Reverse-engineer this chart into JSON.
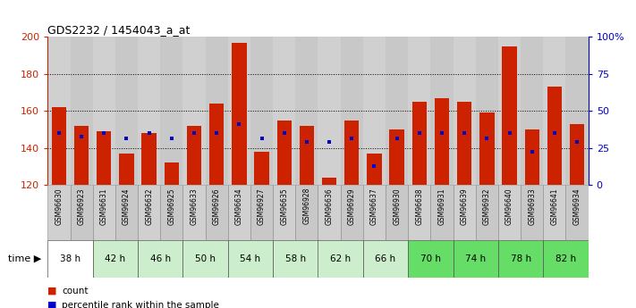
{
  "title": "GDS2232 / 1454043_a_at",
  "samples": [
    "GSM96630",
    "GSM96923",
    "GSM96631",
    "GSM96924",
    "GSM96632",
    "GSM96925",
    "GSM96633",
    "GSM96926",
    "GSM96634",
    "GSM96927",
    "GSM96635",
    "GSM96928",
    "GSM96636",
    "GSM96929",
    "GSM96637",
    "GSM96930",
    "GSM96638",
    "GSM96931",
    "GSM96639",
    "GSM96932",
    "GSM96640",
    "GSM96933",
    "GSM96641",
    "GSM96934"
  ],
  "count_values": [
    162,
    152,
    149,
    137,
    148,
    132,
    152,
    164,
    197,
    138,
    155,
    152,
    124,
    155,
    137,
    150,
    165,
    167,
    165,
    159,
    195,
    150,
    173,
    153
  ],
  "percentile_values": [
    148,
    146,
    148,
    145,
    148,
    145,
    148,
    148,
    153,
    145,
    148,
    143,
    143,
    145,
    130,
    145,
    148,
    148,
    148,
    145,
    148,
    138,
    148,
    143
  ],
  "time_groups": [
    {
      "label": "38 h",
      "start": 0,
      "end": 2
    },
    {
      "label": "42 h",
      "start": 2,
      "end": 4
    },
    {
      "label": "46 h",
      "start": 4,
      "end": 6
    },
    {
      "label": "50 h",
      "start": 6,
      "end": 8
    },
    {
      "label": "54 h",
      "start": 8,
      "end": 10
    },
    {
      "label": "58 h",
      "start": 10,
      "end": 12
    },
    {
      "label": "62 h",
      "start": 12,
      "end": 14
    },
    {
      "label": "66 h",
      "start": 14,
      "end": 16
    },
    {
      "label": "70 h",
      "start": 16,
      "end": 18
    },
    {
      "label": "74 h",
      "start": 18,
      "end": 20
    },
    {
      "label": "78 h",
      "start": 20,
      "end": 22
    },
    {
      "label": "82 h",
      "start": 22,
      "end": 24
    }
  ],
  "time_bg_colors": [
    "#ffffff",
    "#cceecc",
    "#cceecc",
    "#cceecc",
    "#cceecc",
    "#cceecc",
    "#cceecc",
    "#cceecc",
    "#66dd66",
    "#66dd66",
    "#66dd66",
    "#66dd66"
  ],
  "ymin": 120,
  "ymax": 200,
  "yticks_left": [
    120,
    140,
    160,
    180,
    200
  ],
  "yticks_right": [
    0,
    25,
    50,
    75,
    100
  ],
  "bar_color": "#cc2200",
  "percentile_color": "#0000cc",
  "bar_width": 0.65,
  "col_bg_light": "#d0d0d0",
  "col_bg_dark": "#c0c0c0",
  "grid_yticks": [
    140,
    160,
    180
  ],
  "legend_items": [
    {
      "color": "#cc2200",
      "label": "count"
    },
    {
      "color": "#0000cc",
      "label": "percentile rank within the sample"
    }
  ]
}
